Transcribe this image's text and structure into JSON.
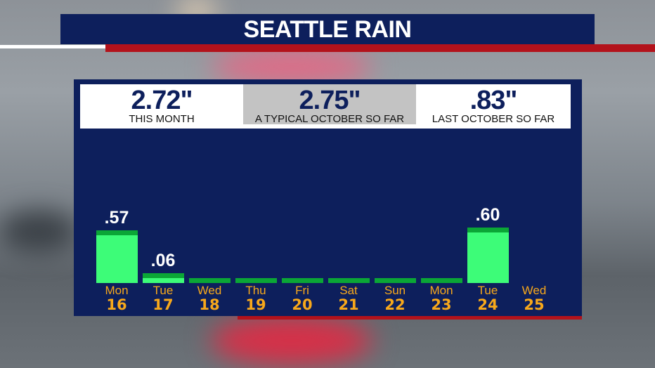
{
  "title": "SEATTLE RAIN",
  "stats": [
    {
      "value": "2.72\"",
      "label": "THIS MONTH"
    },
    {
      "value": "2.75\"",
      "label": "A TYPICAL OCTOBER SO FAR"
    },
    {
      "value": ".83\"",
      "label": "LAST OCTOBER SO FAR"
    }
  ],
  "colors": {
    "navy": "#0d1f5c",
    "red": "#b3121b",
    "bar": "#3dfc78",
    "bar_cap": "#0ba636",
    "day_label": "#f7a81b"
  },
  "chart_data": {
    "type": "bar",
    "categories": [
      {
        "dow": "Mon",
        "day": "16"
      },
      {
        "dow": "Tue",
        "day": "17"
      },
      {
        "dow": "Wed",
        "day": "18"
      },
      {
        "dow": "Thu",
        "day": "19"
      },
      {
        "dow": "Fri",
        "day": "20"
      },
      {
        "dow": "Sat",
        "day": "21"
      },
      {
        "dow": "Sun",
        "day": "22"
      },
      {
        "dow": "Mon",
        "day": "23"
      },
      {
        "dow": "Tue",
        "day": "24"
      },
      {
        "dow": "Wed",
        "day": "25"
      }
    ],
    "values": [
      0.57,
      0.06,
      0,
      0,
      0,
      0,
      0,
      0,
      0.6,
      null
    ],
    "data_labels": [
      ".57",
      ".06",
      "",
      "",
      "",
      "",
      "",
      "",
      ".60",
      ""
    ]
  }
}
